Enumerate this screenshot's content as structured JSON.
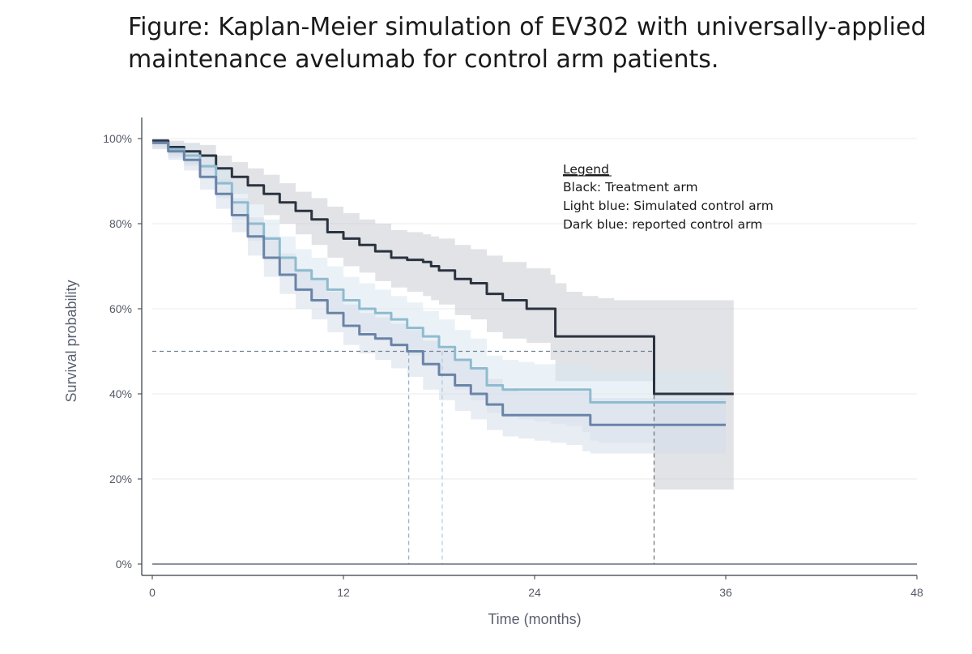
{
  "figure": {
    "title_lines": [
      "Figure: Kaplan-Meier simulation of EV302 with universally-applied",
      "maintenance avelumab for control arm patients."
    ]
  },
  "chart_data": {
    "type": "line",
    "title": "Figure: Kaplan-Meier simulation of EV302 with universally-applied maintenance avelumab for control arm patients.",
    "xlabel": "Time (months)",
    "ylabel": "Survival probability",
    "xlim": [
      0,
      48
    ],
    "ylim": [
      0,
      1
    ],
    "x_ticks": [
      0,
      12,
      24,
      36,
      48
    ],
    "x_tick_labels": [
      "0",
      "12",
      "24",
      "36",
      "48"
    ],
    "y_ticks": [
      0,
      0.2,
      0.4,
      0.6,
      0.8,
      1.0
    ],
    "y_tick_labels": [
      "0%",
      "20%",
      "40%",
      "60%",
      "80%",
      "100%"
    ],
    "grid": "horizontal",
    "legend": {
      "title": "Legend",
      "entries": [
        "Black: Treatment arm",
        "Light blue: Simulated control arm",
        "Dark blue: reported control arm"
      ],
      "placement": "top-right"
    },
    "median_line": {
      "y": 0.5,
      "x_end": 31.5
    },
    "medians": [
      {
        "series": "Dark blue: reported control arm",
        "x": 16.1
      },
      {
        "series": "Light blue: Simulated control arm",
        "x": 18.2
      },
      {
        "series": "Black: Treatment arm",
        "x": 31.5
      }
    ],
    "series": [
      {
        "key": "treatment",
        "color": "#2b3340",
        "band_color": "#c9ccd1",
        "x": [
          0,
          1,
          2,
          3,
          4,
          5,
          6,
          7,
          8,
          9,
          10,
          11,
          12,
          13,
          14,
          15,
          16,
          17,
          17.5,
          18,
          19,
          20,
          21,
          22,
          23.5,
          25,
          25.3,
          26,
          27,
          28,
          29,
          30,
          31.2,
          31.5,
          32,
          33,
          34,
          35,
          36,
          36.5
        ],
        "y": [
          0.995,
          0.98,
          0.97,
          0.96,
          0.93,
          0.91,
          0.89,
          0.87,
          0.85,
          0.83,
          0.81,
          0.78,
          0.765,
          0.75,
          0.735,
          0.72,
          0.715,
          0.71,
          0.7,
          0.69,
          0.67,
          0.66,
          0.635,
          0.62,
          0.6,
          0.6,
          0.535,
          0.535,
          0.535,
          0.535,
          0.535,
          0.535,
          0.535,
          0.4,
          0.4,
          0.4,
          0.4,
          0.4,
          0.4,
          0.4
        ],
        "lower": [
          0.98,
          0.96,
          0.94,
          0.925,
          0.895,
          0.87,
          0.845,
          0.82,
          0.8,
          0.775,
          0.75,
          0.72,
          0.7,
          0.685,
          0.665,
          0.65,
          0.64,
          0.63,
          0.62,
          0.61,
          0.585,
          0.575,
          0.545,
          0.53,
          0.52,
          0.48,
          0.43,
          0.43,
          0.43,
          0.43,
          0.43,
          0.43,
          0.43,
          0.175,
          0.175,
          0.175,
          0.175,
          0.175,
          0.175,
          0.175
        ],
        "upper": [
          1.0,
          0.995,
          0.99,
          0.985,
          0.96,
          0.945,
          0.93,
          0.915,
          0.895,
          0.875,
          0.86,
          0.84,
          0.825,
          0.81,
          0.8,
          0.785,
          0.78,
          0.775,
          0.77,
          0.765,
          0.75,
          0.74,
          0.725,
          0.71,
          0.695,
          0.68,
          0.66,
          0.64,
          0.63,
          0.625,
          0.62,
          0.62,
          0.62,
          0.62,
          0.62,
          0.62,
          0.62,
          0.62,
          0.62,
          0.62
        ]
      },
      {
        "key": "simulated",
        "color": "#8fbbcf",
        "band_color": "#dbe8f1",
        "x": [
          0,
          1,
          2,
          3,
          4,
          5,
          6,
          7,
          8,
          9,
          10,
          11,
          12,
          13,
          14,
          15,
          16,
          17,
          18,
          19,
          20,
          21,
          22,
          23,
          24,
          25,
          26,
          27,
          27.5,
          28,
          30,
          32,
          34,
          36
        ],
        "y": [
          0.99,
          0.975,
          0.96,
          0.935,
          0.895,
          0.85,
          0.8,
          0.765,
          0.72,
          0.69,
          0.67,
          0.645,
          0.62,
          0.6,
          0.59,
          0.575,
          0.555,
          0.535,
          0.51,
          0.48,
          0.46,
          0.42,
          0.41,
          0.41,
          0.41,
          0.41,
          0.41,
          0.41,
          0.38,
          0.38,
          0.38,
          0.38,
          0.38,
          0.38
        ],
        "lower": [
          0.975,
          0.955,
          0.935,
          0.905,
          0.86,
          0.81,
          0.76,
          0.72,
          0.675,
          0.64,
          0.615,
          0.59,
          0.565,
          0.545,
          0.53,
          0.51,
          0.49,
          0.465,
          0.44,
          0.41,
          0.385,
          0.355,
          0.345,
          0.34,
          0.335,
          0.33,
          0.325,
          0.31,
          0.29,
          0.285,
          0.285,
          0.28,
          0.275,
          0.265
        ],
        "upper": [
          1.0,
          0.99,
          0.985,
          0.965,
          0.93,
          0.89,
          0.845,
          0.81,
          0.77,
          0.74,
          0.72,
          0.7,
          0.675,
          0.66,
          0.645,
          0.63,
          0.615,
          0.595,
          0.575,
          0.55,
          0.53,
          0.49,
          0.48,
          0.475,
          0.47,
          0.47,
          0.47,
          0.465,
          0.455,
          0.455,
          0.455,
          0.455,
          0.455,
          0.455
        ]
      },
      {
        "key": "reported",
        "color": "#6a84a8",
        "band_color": "#d5dcea",
        "x": [
          0,
          1,
          2,
          3,
          4,
          5,
          6,
          7,
          8,
          9,
          10,
          11,
          12,
          13,
          14,
          15,
          16,
          17,
          18,
          19,
          20,
          21,
          22,
          23,
          24,
          25,
          26,
          27,
          27.5,
          28,
          30,
          32,
          34,
          36
        ],
        "y": [
          0.99,
          0.97,
          0.95,
          0.91,
          0.87,
          0.82,
          0.77,
          0.72,
          0.68,
          0.645,
          0.62,
          0.59,
          0.56,
          0.54,
          0.53,
          0.515,
          0.5,
          0.47,
          0.445,
          0.42,
          0.4,
          0.375,
          0.35,
          0.35,
          0.35,
          0.35,
          0.35,
          0.35,
          0.327,
          0.327,
          0.327,
          0.327,
          0.327,
          0.327
        ],
        "lower": [
          0.975,
          0.95,
          0.925,
          0.88,
          0.835,
          0.78,
          0.725,
          0.675,
          0.635,
          0.6,
          0.575,
          0.545,
          0.515,
          0.495,
          0.48,
          0.46,
          0.44,
          0.41,
          0.385,
          0.36,
          0.34,
          0.315,
          0.3,
          0.295,
          0.29,
          0.285,
          0.28,
          0.265,
          0.26,
          0.26,
          0.26,
          0.26,
          0.26,
          0.26
        ],
        "upper": [
          1.0,
          0.99,
          0.97,
          0.94,
          0.905,
          0.86,
          0.815,
          0.77,
          0.73,
          0.695,
          0.67,
          0.64,
          0.61,
          0.59,
          0.58,
          0.565,
          0.55,
          0.525,
          0.505,
          0.48,
          0.46,
          0.435,
          0.41,
          0.405,
          0.405,
          0.405,
          0.405,
          0.405,
          0.39,
          0.39,
          0.39,
          0.39,
          0.39,
          0.39
        ]
      }
    ]
  }
}
